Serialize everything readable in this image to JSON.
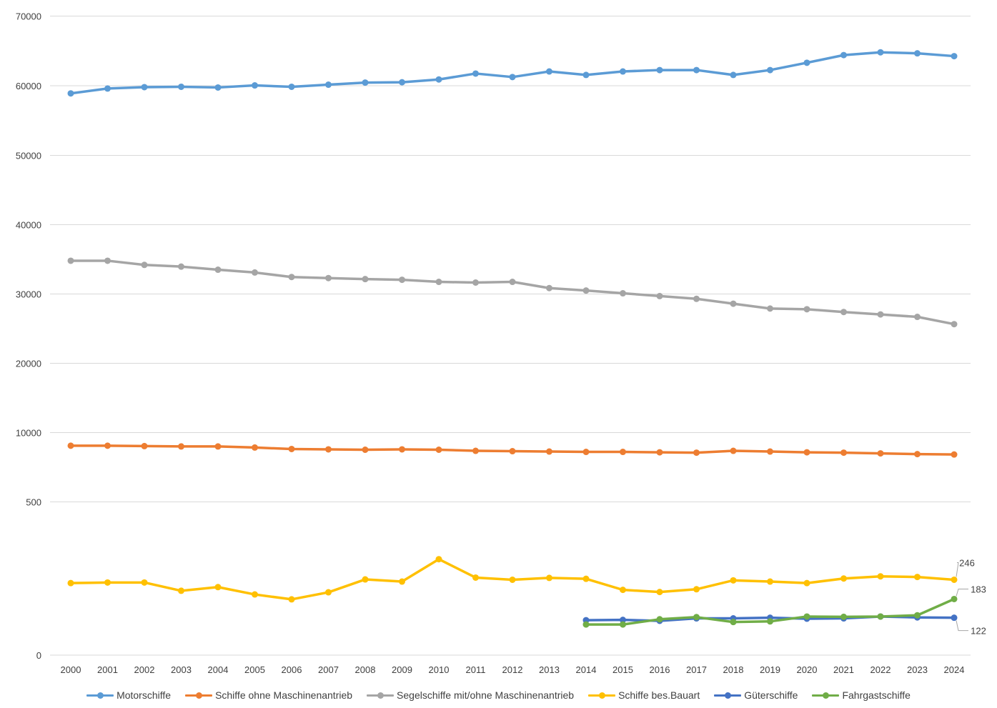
{
  "chart_data": {
    "type": "line",
    "title": "",
    "xlabel": "",
    "ylabel": "",
    "legend_position": "bottom",
    "grid": true,
    "y_axis": {
      "scale": "broken",
      "ticks": [
        0,
        500,
        10000,
        20000,
        30000,
        40000,
        50000,
        60000,
        70000
      ],
      "tick_labels": [
        "0",
        "500",
        "10000",
        "20000",
        "30000",
        "40000",
        "50000",
        "60000",
        "70000"
      ]
    },
    "categories": [
      "2000",
      "2001",
      "2002",
      "2003",
      "2004",
      "2005",
      "2006",
      "2007",
      "2008",
      "2009",
      "2010",
      "2011",
      "2012",
      "2013",
      "2014",
      "2015",
      "2016",
      "2017",
      "2018",
      "2019",
      "2020",
      "2021",
      "2022",
      "2023",
      "2024"
    ],
    "series": [
      {
        "name": "Motorschiffe",
        "color": "#5B9BD5",
        "values": [
          58900,
          59600,
          59800,
          59850,
          59750,
          60050,
          59850,
          60150,
          60450,
          60500,
          60900,
          61750,
          61250,
          62050,
          61550,
          62050,
          62250,
          62250,
          61550,
          62250,
          63300,
          64400,
          64800,
          64650,
          64250
        ]
      },
      {
        "name": "Schiffe ohne Maschinenantrieb",
        "color": "#ED7D31",
        "values": [
          8200,
          8200,
          8150,
          8100,
          8100,
          7950,
          7750,
          7700,
          7650,
          7700,
          7650,
          7500,
          7450,
          7400,
          7350,
          7350,
          7300,
          7250,
          7500,
          7400,
          7300,
          7250,
          7150,
          7050,
          7000
        ]
      },
      {
        "name": "Segelschiffe mit/ohne Maschinenantrieb",
        "color": "#A5A5A5",
        "values": [
          34800,
          34800,
          34200,
          33950,
          33500,
          33100,
          32450,
          32300,
          32150,
          32050,
          31750,
          31650,
          31750,
          30850,
          30500,
          30100,
          29700,
          29300,
          28600,
          27900,
          27800,
          27400,
          27050,
          26700,
          25650
        ]
      },
      {
        "name": "Schiffe bes.Bauart",
        "color": "#FFC000",
        "values": [
          235,
          237,
          237,
          210,
          222,
          198,
          182,
          205,
          247,
          240,
          313,
          253,
          246,
          252,
          249,
          213,
          206,
          215,
          244,
          240,
          235,
          250,
          257,
          255,
          246
        ]
      },
      {
        "name": "Güterschiffe",
        "color": "#4472C4",
        "values": [
          null,
          null,
          null,
          null,
          null,
          null,
          null,
          null,
          null,
          null,
          null,
          null,
          null,
          null,
          114,
          115,
          112,
          120,
          120,
          122,
          119,
          120,
          126,
          123,
          122
        ]
      },
      {
        "name": "Fahrgastschiffe",
        "color": "#70AD47",
        "values": [
          null,
          null,
          null,
          null,
          null,
          null,
          null,
          null,
          null,
          null,
          null,
          null,
          null,
          null,
          100,
          100,
          117,
          124,
          108,
          110,
          126,
          125,
          126,
          130,
          183
        ]
      }
    ],
    "data_labels": [
      {
        "series": "Schiffe bes.Bauart",
        "category": "2024",
        "text": "246"
      },
      {
        "series": "Fahrgastschiffe",
        "category": "2024",
        "text": "183"
      },
      {
        "series": "Güterschiffe",
        "category": "2024",
        "text": "122"
      }
    ]
  }
}
